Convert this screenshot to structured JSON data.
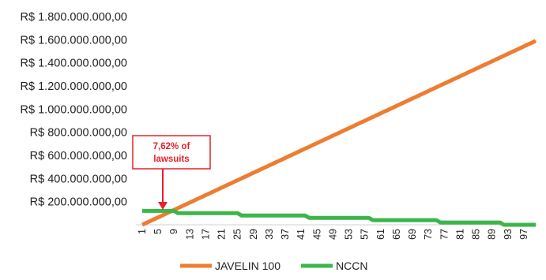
{
  "chart_data": {
    "type": "line",
    "x": [
      1,
      2,
      3,
      4,
      5,
      6,
      7,
      8,
      9,
      10,
      11,
      12,
      13,
      14,
      15,
      16,
      17,
      18,
      19,
      20,
      21,
      22,
      23,
      24,
      25,
      26,
      27,
      28,
      29,
      30,
      31,
      32,
      33,
      34,
      35,
      36,
      37,
      38,
      39,
      40,
      41,
      42,
      43,
      44,
      45,
      46,
      47,
      48,
      49,
      50,
      51,
      52,
      53,
      54,
      55,
      56,
      57,
      58,
      59,
      60,
      61,
      62,
      63,
      64,
      65,
      66,
      67,
      68,
      69,
      70,
      71,
      72,
      73,
      74,
      75,
      76,
      77,
      78,
      79,
      80,
      81,
      82,
      83,
      84,
      85,
      86,
      87,
      88,
      89,
      90,
      91,
      92,
      93,
      94,
      95,
      96,
      97,
      98,
      99,
      100
    ],
    "xticks": [
      "1",
      "5",
      "9",
      "13",
      "17",
      "21",
      "25",
      "29",
      "33",
      "37",
      "41",
      "45",
      "49",
      "53",
      "57",
      "61",
      "65",
      "69",
      "73",
      "77",
      "81",
      "85",
      "89",
      "93",
      "97"
    ],
    "yticks": [
      "R$ 200.000.000,00",
      "R$ 400.000.000,00",
      "R$ 600.000.000,00",
      "R$ 800.000.000,00",
      "R$ 1.000.000.000,00",
      "R$ 1.200.000.000,00",
      "R$ 1.400.000.000,00",
      "R$ 1.600.000.000,00",
      "R$ 1.800.000.000,00"
    ],
    "ytick_values": [
      200000000,
      400000000,
      600000000,
      800000000,
      1000000000,
      1200000000,
      1400000000,
      1600000000,
      1800000000
    ],
    "ylim": [
      0,
      1800000000
    ],
    "grid": false,
    "legend_position": "bottom",
    "series": [
      {
        "name": "JAVELIN 100",
        "color": "#ed7d31",
        "start": 0,
        "end": 1590000000
      },
      {
        "name": "NCCN",
        "color": "#3cb54a",
        "start": 120000000,
        "end": 0
      }
    ],
    "annotation": {
      "lines": [
        "7,62% of",
        "lawsuits"
      ],
      "color": "#e8202a",
      "x": 7.62
    }
  }
}
